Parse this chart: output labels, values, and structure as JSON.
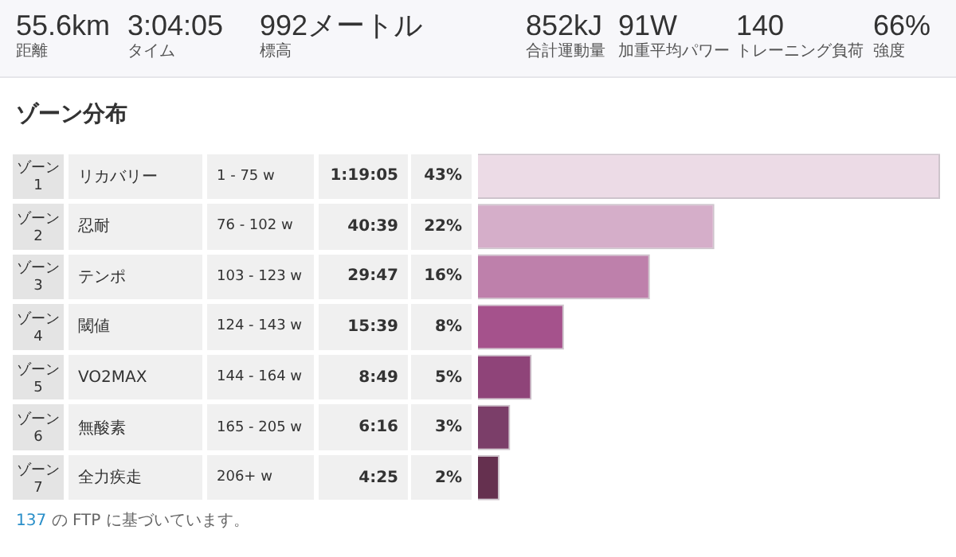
{
  "chart_data": {
    "type": "bar",
    "orientation": "horizontal",
    "title": "ゾーン分布",
    "categories": [
      "ゾーン 1",
      "ゾーン 2",
      "ゾーン 3",
      "ゾーン 4",
      "ゾーン 5",
      "ゾーン 6",
      "ゾーン 7"
    ],
    "values": [
      43,
      22,
      16,
      8,
      5,
      3,
      2
    ],
    "value_labels": [
      "43%",
      "22%",
      "16%",
      "8%",
      "5%",
      "3%",
      "2%"
    ],
    "colors": [
      "#ecdbe6",
      "#d5aec9",
      "#be80ab",
      "#a5528c",
      "#8f4479",
      "#7b3e69",
      "#65304f"
    ],
    "xlim": [
      0,
      43
    ],
    "tick_labels": false,
    "annotations": [
      "55.6km",
      "距離",
      "3:04:05",
      "タイム",
      "992メートル",
      "標高",
      "852kJ",
      "合計運動量",
      "91W",
      "加重平均パワー",
      "140",
      "トレーニング負荷",
      "66%",
      "強度",
      "リカバリー",
      "1 - 75 w",
      "1:19:05",
      "忍耐",
      "76 - 102 w",
      "40:39",
      "テンポ",
      "103 - 123 w",
      "29:47",
      "閾値",
      "124 - 143 w",
      "15:39",
      "VO2MAX",
      "144 - 164 w",
      "8:49",
      "無酸素",
      "165 - 205 w",
      "6:16",
      "全力疾走",
      "206+ w",
      "4:25",
      "137 の FTP に基づいています。"
    ]
  }
}
